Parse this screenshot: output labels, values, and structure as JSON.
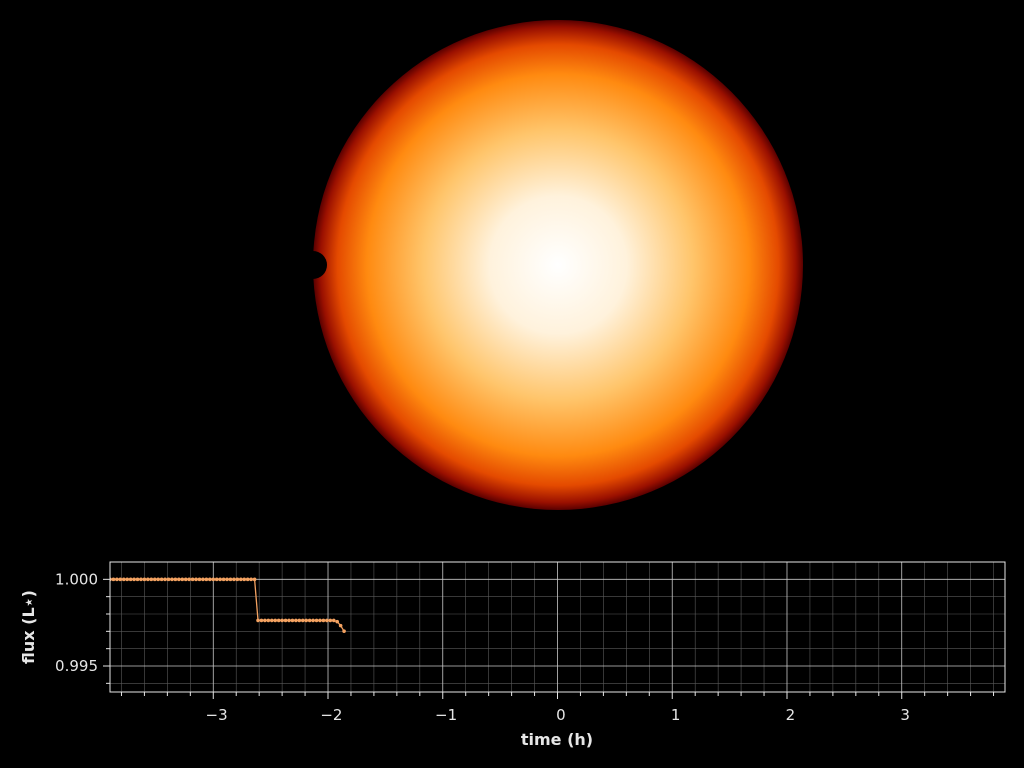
{
  "colors": {
    "background": "#000000",
    "foreground": "#e6e6e6",
    "grid_major": "#c8c8c8",
    "grid_minor": "#5a5a5a",
    "line": "#f4a261",
    "star_center": "#ffffff",
    "star_mid": "#ffb347",
    "star_limb": "#ff6a00",
    "star_edge": "#7a0000"
  },
  "chart_data": [
    {
      "type": "image",
      "content": "stellar disk with transiting planet at left limb",
      "star_center": [
        0,
        0
      ],
      "star_radius": 1,
      "planet_center": [
        -1,
        0
      ],
      "planet_radius": 0.05,
      "planet_color": "#000000"
    },
    {
      "type": "line",
      "xlabel": "time (h)",
      "ylabel": "flux (L⋆)",
      "xlim": [
        -3.9,
        3.9
      ],
      "ylim": [
        0.9935,
        1.001
      ],
      "xticks": [
        -3,
        -2,
        -1,
        0,
        1,
        2,
        3
      ],
      "xtick_labels": [
        "−3",
        "−2",
        "−1",
        "0",
        "1",
        "2",
        "3"
      ],
      "yticks": [
        0.995,
        1.0
      ],
      "ytick_labels": [
        "0.995",
        "1.000"
      ],
      "grid": true,
      "minor_grid": true,
      "markers": true,
      "series": [
        {
          "x": [
            -3.9,
            -3.87,
            -3.84,
            -3.81,
            -3.78,
            -3.75,
            -3.72,
            -3.69,
            -3.66,
            -3.63,
            -3.6,
            -3.57,
            -3.54,
            -3.51,
            -3.48,
            -3.45,
            -3.42,
            -3.39,
            -3.36,
            -3.33,
            -3.3,
            -3.27,
            -3.24,
            -3.21,
            -3.18,
            -3.15,
            -3.12,
            -3.09,
            -3.06,
            -3.03,
            -3.0,
            -2.97,
            -2.94,
            -2.91,
            -2.88,
            -2.85,
            -2.82,
            -2.79,
            -2.76,
            -2.73,
            -2.7,
            -2.67,
            -2.64,
            -2.61,
            -2.58,
            -2.55,
            -2.52,
            -2.49,
            -2.46,
            -2.43,
            -2.4,
            -2.37,
            -2.34,
            -2.31,
            -2.28,
            -2.25,
            -2.22,
            -2.19,
            -2.16,
            -2.13,
            -2.1,
            -2.07,
            -2.04,
            -2.01,
            -1.98,
            -1.95,
            -1.92,
            -1.89,
            -1.86
          ],
          "y": [
            1.0,
            1.0,
            1.0,
            1.0,
            1.0,
            1.0,
            1.0,
            1.0,
            1.0,
            1.0,
            1.0,
            1.0,
            1.0,
            1.0,
            1.0,
            1.0,
            1.0,
            1.0,
            1.0,
            1.0,
            1.0,
            1.0,
            1.0,
            1.0,
            1.0,
            1.0,
            1.0,
            1.0,
            1.0,
            1.0,
            1.0,
            1.0,
            1.0,
            1.0,
            1.0,
            1.0,
            1.0,
            1.0,
            1.0,
            1.0,
            1.0,
            1.0,
            1.0,
            0.99763,
            0.99763,
            0.99763,
            0.99763,
            0.99763,
            0.99763,
            0.99763,
            0.99763,
            0.99763,
            0.99763,
            0.99763,
            0.99763,
            0.99763,
            0.99763,
            0.99763,
            0.99763,
            0.99763,
            0.99763,
            0.99763,
            0.99763,
            0.99763,
            0.99763,
            0.99763,
            0.99756,
            0.99733,
            0.99701
          ]
        }
      ]
    }
  ]
}
